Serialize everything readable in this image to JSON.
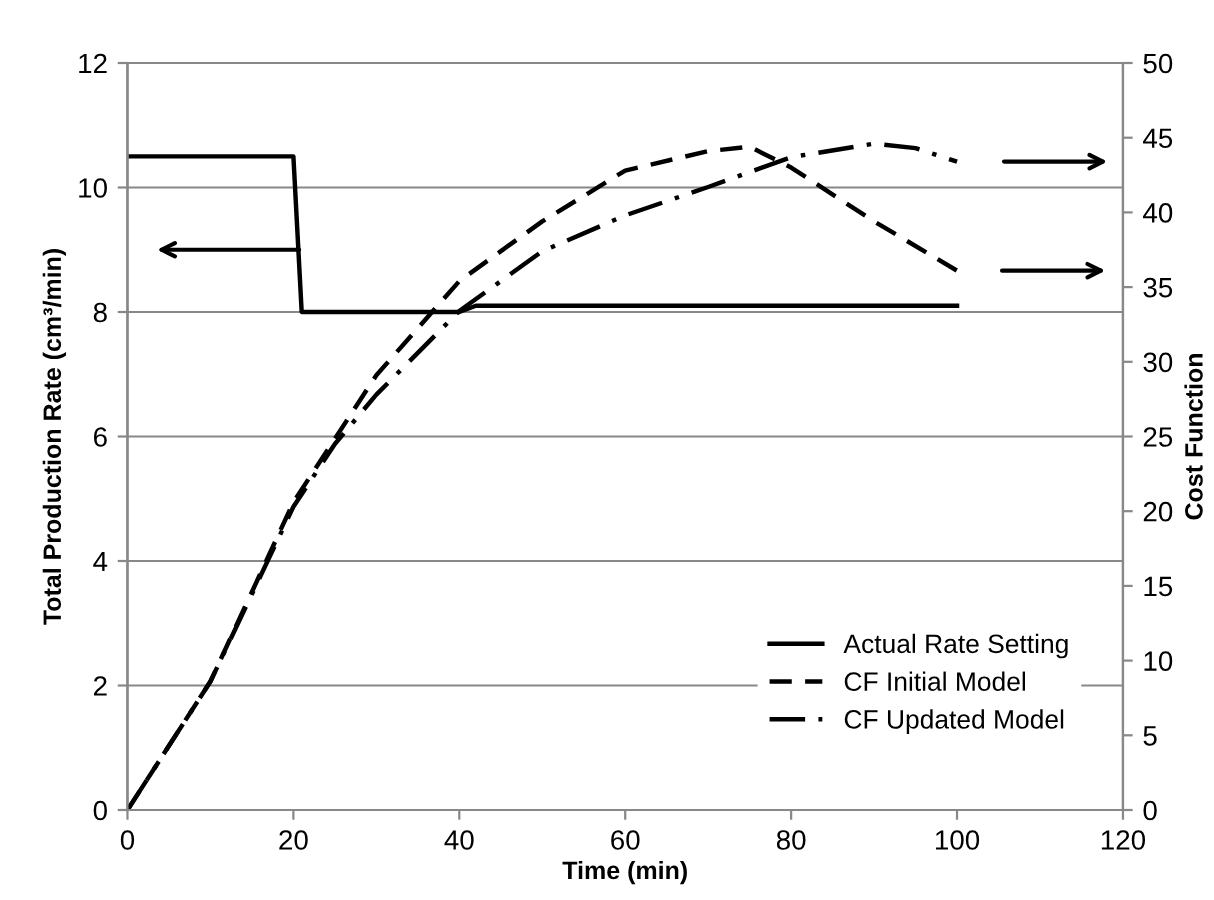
{
  "chart_data": {
    "type": "line",
    "xlabel": "Time (min)",
    "ylabel": "Total Production Rate (cm³/min)",
    "y2label": "Cost Function",
    "xlim": [
      0,
      120
    ],
    "xticks": [
      0,
      20,
      40,
      60,
      80,
      100,
      120
    ],
    "ylim": [
      0,
      12
    ],
    "yticks": [
      0,
      2,
      4,
      6,
      8,
      10,
      12
    ],
    "y2lim": [
      0,
      50
    ],
    "y2ticks": [
      0,
      5,
      10,
      15,
      20,
      25,
      30,
      35,
      40,
      45,
      50
    ],
    "grid": "y",
    "legend": "bottom right",
    "marker": "none",
    "series": [
      {
        "name": "Actual Rate Setting",
        "color": "#000000",
        "line_style": "solid",
        "x": [
          0,
          20,
          21,
          40,
          42,
          100
        ],
        "values": [
          10.5,
          10.5,
          8,
          8,
          8.1,
          8.1
        ]
      },
      {
        "name": "CF Initial Model",
        "color": "#000000",
        "line_style": "dashed",
        "axis": "y2",
        "x": [
          0,
          10,
          20,
          30,
          40,
          50,
          60,
          70,
          75,
          80,
          90,
          100
        ],
        "values": [
          0,
          8.6,
          20.6,
          29.1,
          35.4,
          39.4,
          42.8,
          44.1,
          44.4,
          43.0,
          39.4,
          36.1
        ]
      },
      {
        "name": "CF Updated Model",
        "color": "#000000",
        "line_style": "dashdot",
        "axis": "y2",
        "x": [
          0,
          10,
          20,
          25,
          30,
          40,
          50,
          60,
          70,
          80,
          90,
          95,
          100
        ],
        "values": [
          0,
          8.6,
          20.3,
          24.5,
          27.8,
          33.4,
          37.4,
          39.8,
          41.7,
          43.7,
          44.6,
          44.3,
          43.4
        ]
      }
    ]
  }
}
